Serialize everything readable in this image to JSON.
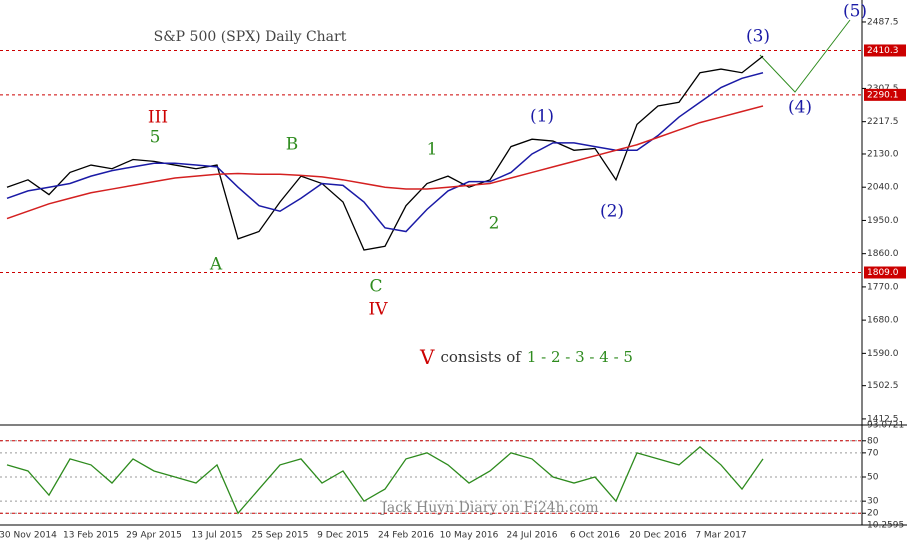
{
  "chart_data": [
    {
      "type": "line",
      "title": "S&P 500 (SPX) Daily Chart",
      "categories": [
        null,
        "30 Nov 2014",
        null,
        null,
        "13 Feb 2015",
        null,
        null,
        "29 Apr 2015",
        null,
        null,
        "13 Jul 2015",
        null,
        null,
        "25 Sep 2015",
        null,
        null,
        "9 Dec 2015",
        null,
        null,
        "24 Feb 2016",
        null,
        null,
        "10 May 2016",
        null,
        null,
        "24 Jul 2016",
        null,
        null,
        "6 Oct 2016",
        null,
        null,
        "20 Dec 2016",
        null,
        null,
        "7 Mar 2017",
        null,
        null
      ],
      "series": [
        {
          "color": "#000000",
          "values": [
            2040,
            2060,
            2020,
            2080,
            2100,
            2090,
            2115,
            2110,
            2100,
            2090,
            2100,
            1900,
            1920,
            2000,
            2070,
            2050,
            2000,
            1870,
            1880,
            1990,
            2050,
            2070,
            2040,
            2060,
            2150,
            2170,
            2165,
            2140,
            2145,
            2060,
            2210,
            2260,
            2270,
            2350,
            2360,
            2350,
            2395
          ]
        },
        {
          "color": "#1a1aa6",
          "values": [
            2010,
            2030,
            2040,
            2050,
            2070,
            2085,
            2095,
            2105,
            2105,
            2100,
            2095,
            2040,
            1990,
            1975,
            2010,
            2050,
            2045,
            2000,
            1930,
            1920,
            1980,
            2030,
            2055,
            2055,
            2080,
            2130,
            2160,
            2160,
            2150,
            2140,
            2140,
            2180,
            2230,
            2270,
            2310,
            2335,
            2350
          ]
        },
        {
          "color": "#d42020",
          "values": [
            1955,
            1975,
            1995,
            2010,
            2025,
            2035,
            2045,
            2055,
            2065,
            2070,
            2075,
            2077,
            2075,
            2075,
            2072,
            2068,
            2060,
            2050,
            2040,
            2035,
            2035,
            2040,
            2045,
            2050,
            2065,
            2080,
            2095,
            2110,
            2125,
            2140,
            2155,
            2175,
            2195,
            2215,
            2230,
            2245,
            2260
          ]
        }
      ],
      "ylim": [
        1396,
        2547
      ],
      "yticks": [
        2487.5,
        2307.5,
        2217.5,
        {
          "value": 2130,
          "label": "2130.0"
        },
        {
          "value": 2040,
          "label": "2040.0"
        },
        {
          "value": 1950,
          "label": "1950.0"
        },
        {
          "value": 1860,
          "label": "1860.0"
        },
        {
          "value": 1770,
          "label": "1770.0"
        },
        {
          "value": 1680,
          "label": "1680.0"
        },
        {
          "value": 1590,
          "label": "1590.0"
        },
        1502.5,
        1412.5
      ],
      "levels": [
        2410.3,
        2290.1,
        {
          "value": 1809,
          "label": "1809.0"
        }
      ],
      "level_color": "#cc0000",
      "annotations": [
        {
          "text": "III",
          "color": "#cc0000"
        },
        {
          "text": "5",
          "color": "#2e8b1e"
        },
        {
          "text": "A",
          "color": "#2e8b1e"
        },
        {
          "text": "B",
          "color": "#2e8b1e"
        },
        {
          "text": "C",
          "color": "#2e8b1e"
        },
        {
          "text": "IV",
          "color": "#cc0000"
        },
        {
          "text": "1",
          "color": "#2e8b1e"
        },
        {
          "text": "2",
          "color": "#2e8b1e"
        },
        {
          "text": "(1)",
          "color": "#1a1aa6"
        },
        {
          "text": "(2)",
          "color": "#1a1aa6"
        },
        {
          "text": "(3)",
          "color": "#1a1aa6"
        },
        {
          "text": "(4)",
          "color": "#1a1aa6"
        },
        {
          "text": "(5)",
          "color": "#1a1aa6"
        }
      ],
      "note": [
        {
          "text": "V",
          "color": "#cc0000"
        },
        {
          "text": "consists of",
          "color": "#333333"
        },
        {
          "text": "1 - 2 - 3 - 4 - 5",
          "color": "#2e8b1e"
        }
      ],
      "watermark": "Jack Huyn Diary on Fi24h.com"
    },
    {
      "type": "line",
      "series": [
        {
          "color": "#2e8b1e",
          "values": [
            60,
            55,
            35,
            65,
            60,
            45,
            65,
            55,
            50,
            45,
            60,
            20,
            40,
            60,
            65,
            45,
            55,
            30,
            40,
            65,
            70,
            60,
            45,
            55,
            70,
            65,
            50,
            45,
            50,
            30,
            70,
            65,
            60,
            75,
            60,
            40,
            65
          ]
        }
      ],
      "ylim": [
        10.2595,
        93.0721
      ],
      "yticks": [
        93.0721,
        80,
        70,
        50,
        30,
        20,
        10.2595
      ],
      "grid": true,
      "levels": [
        80,
        20
      ],
      "level_color": "#cc0000"
    }
  ]
}
